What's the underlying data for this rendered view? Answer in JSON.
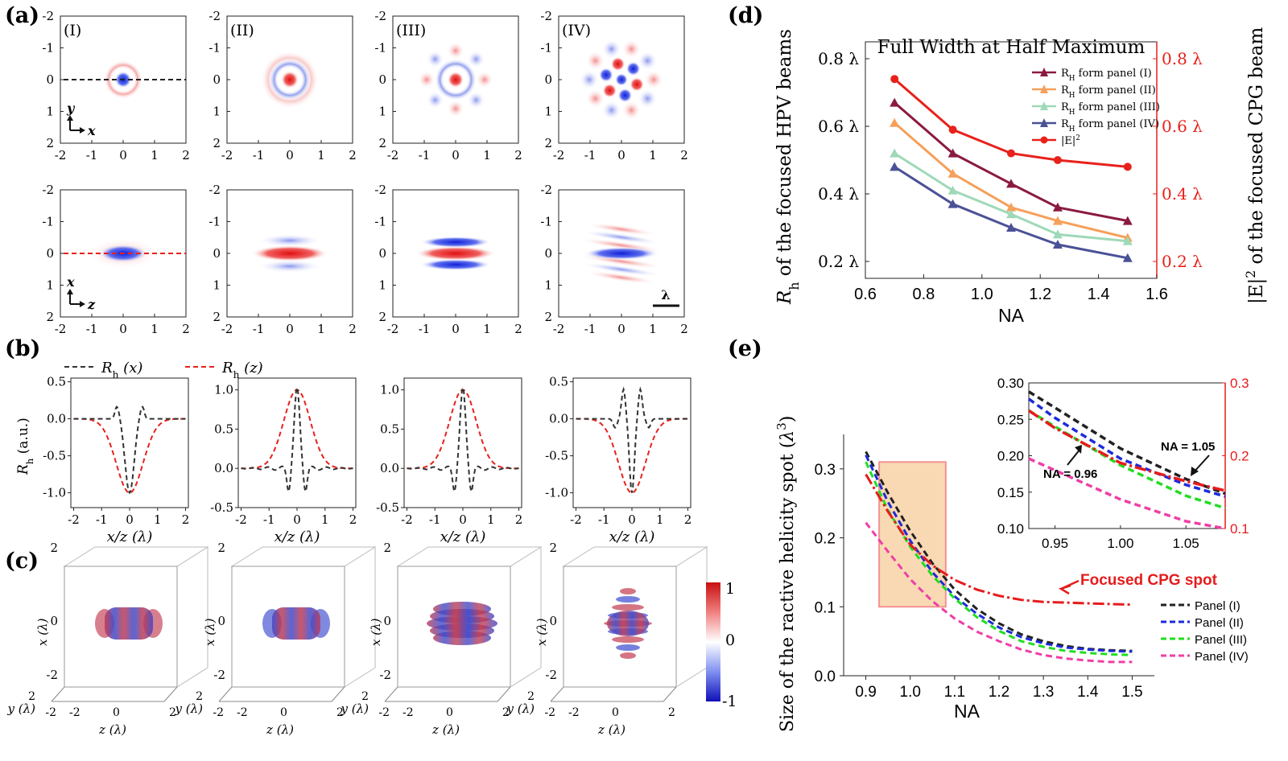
{
  "panel_labels": {
    "a": "(a)",
    "b": "(b)",
    "c": "(c)",
    "d": "(d)",
    "e": "(e)"
  },
  "colors": {
    "red": "#e8211b",
    "blue": "#1d2bd9",
    "black": "#222222",
    "maroon": "#8b1a3e",
    "orange": "#f5a05b",
    "mint": "#9fd9b8",
    "slate": "#4a5196",
    "green": "#22dd22",
    "magenta": "#ee3fa6",
    "cpg_red": "#e61c1c",
    "box_fill": "#f8d3a6",
    "box_edge": "#f08080"
  },
  "panel_a": {
    "roman": [
      "(I)",
      "(II)",
      "(III)",
      "(IV)"
    ],
    "tick_labels": [
      "-2",
      "-1",
      "0",
      "1",
      "2"
    ],
    "top_axes": {
      "v": "y",
      "h": "x"
    },
    "bottom_axes": {
      "v": "x",
      "h": "z"
    },
    "scale_bar_label": "λ"
  },
  "panel_b": {
    "legend": [
      {
        "name": "Rh (x)",
        "r": "R",
        "sub": "h",
        "arg": " (x)",
        "color": "#333333",
        "dash": "6,4"
      },
      {
        "name": "Rh (z)",
        "r": "R",
        "sub": "h",
        "arg": "  (z)",
        "color": "#e8211b",
        "dash": "6,4"
      }
    ],
    "ylabel_main": "R",
    "ylabel_sub": "h",
    "ylabel_tail": " (a.u.)",
    "xlabel": "x/z (λ)",
    "x_ticks": [
      "-2",
      "-1",
      "0",
      "1",
      "2"
    ]
  },
  "panel_c": {
    "axis_x": "x (λ)",
    "axis_y": "y (λ)",
    "axis_z": "z (λ)",
    "ticks": {
      "top": "2",
      "bottom": "-2",
      "zero": "0"
    },
    "colorbar": [
      "1",
      "0",
      "-1"
    ]
  },
  "chart_data": [
    {
      "type": "line",
      "title": "Full Width at Half Maximum",
      "xlabel": "NA",
      "ylabel_left": "Rh of the focused HPV beams",
      "ylabel_right": "|E|2 of the focused CPG beam",
      "xlim": [
        0.6,
        1.6
      ],
      "ylim": [
        0.15,
        0.85
      ],
      "x_ticks": [
        "0.6",
        "0.8",
        "1.0",
        "1.2",
        "1.4",
        "1.6"
      ],
      "y_ticks": [
        "0.2 λ",
        "0.4 λ",
        "0.6 λ",
        "0.8 λ"
      ],
      "x": [
        0.7,
        0.9,
        1.1,
        1.26,
        1.5
      ],
      "series": [
        {
          "name": "RH form panel (I)",
          "label_main": "R",
          "label_sub": "H",
          "label_tail": " form panel (I)",
          "marker": "triangle",
          "color": "#8b1a3e",
          "values": [
            0.67,
            0.52,
            0.43,
            0.36,
            0.32
          ]
        },
        {
          "name": "RH form panel (II)",
          "label_main": "R",
          "label_sub": "H",
          "label_tail": " form panel (II)",
          "marker": "triangle",
          "color": "#f5a05b",
          "values": [
            0.61,
            0.46,
            0.36,
            0.32,
            0.27
          ]
        },
        {
          "name": "RH form panel (III)",
          "label_main": "R",
          "label_sub": "H",
          "label_tail": " form panel (III)",
          "marker": "triangle",
          "color": "#9fd9b8",
          "values": [
            0.52,
            0.41,
            0.34,
            0.28,
            0.26
          ]
        },
        {
          "name": "RH form panel (IV)",
          "label_main": "R",
          "label_sub": "H",
          "label_tail": " form panel (IV)",
          "marker": "triangle",
          "color": "#4a5196",
          "values": [
            0.48,
            0.37,
            0.3,
            0.25,
            0.21
          ]
        },
        {
          "name": "|E|2",
          "label_main": "|E|",
          "label_sub": "",
          "label_sup": "2",
          "label_tail": "",
          "marker": "circle",
          "color": "#e8211b",
          "values": [
            0.74,
            0.59,
            0.52,
            0.5,
            0.48
          ]
        }
      ]
    },
    {
      "type": "line",
      "xlabel": "NA",
      "ylabel": "Size of the ractive helicity spot (λ3)",
      "xlim": [
        0.85,
        1.55
      ],
      "ylim": [
        0,
        0.35
      ],
      "x_ticks": [
        "0.9",
        "1.0",
        "1.1",
        "1.2",
        "1.3",
        "1.4",
        "1.5"
      ],
      "y_ticks": [
        "0.0",
        "0.1",
        "0.2",
        "0.3"
      ],
      "x": [
        0.9,
        0.95,
        1.0,
        1.05,
        1.1,
        1.15,
        1.2,
        1.25,
        1.3,
        1.35,
        1.4,
        1.45,
        1.5
      ],
      "highlight_box": {
        "x": [
          0.93,
          1.08
        ],
        "y": [
          0.1,
          0.31
        ]
      },
      "annotation": "Focused CPG spot",
      "series": [
        {
          "name": "Panel (I)",
          "color": "#222222",
          "dash": "8,5",
          "values": [
            0.325,
            0.265,
            0.21,
            0.163,
            0.125,
            0.097,
            0.076,
            0.06,
            0.05,
            0.043,
            0.039,
            0.037,
            0.036
          ]
        },
        {
          "name": "Panel (II)",
          "color": "#1d2bd9",
          "dash": "8,5",
          "values": [
            0.32,
            0.252,
            0.196,
            0.15,
            0.115,
            0.09,
            0.07,
            0.056,
            0.047,
            0.041,
            0.038,
            0.036,
            0.035
          ]
        },
        {
          "name": "Panel (III)",
          "color": "#22dd22",
          "dash": "8,5",
          "values": [
            0.31,
            0.24,
            0.187,
            0.145,
            0.112,
            0.085,
            0.065,
            0.05,
            0.042,
            0.036,
            0.033,
            0.031,
            0.03
          ]
        },
        {
          "name": "Panel (IV)",
          "color": "#ee3fa6",
          "dash": "8,5",
          "values": [
            0.222,
            0.18,
            0.14,
            0.108,
            0.083,
            0.064,
            0.05,
            0.038,
            0.03,
            0.025,
            0.022,
            0.02,
            0.02
          ]
        },
        {
          "name": "Focused CPG spot",
          "legend": false,
          "color": "#e61c1c",
          "dash": "14,4,3,4",
          "values": [
            0.292,
            0.238,
            0.19,
            0.16,
            0.139,
            0.125,
            0.116,
            0.11,
            0.107,
            0.106,
            0.105,
            0.104,
            0.103
          ]
        }
      ],
      "inset": {
        "xlim": [
          0.93,
          1.08
        ],
        "ylim": [
          0.1,
          0.3
        ],
        "x_ticks": [
          "0.95",
          "1.00",
          "1.05"
        ],
        "y_ticks": [
          "0.10",
          "0.15",
          "0.20",
          "0.25",
          "0.30"
        ],
        "y_ticks_right": [
          "0.1",
          "0.2",
          "0.3"
        ],
        "annotations": [
          "NA = 1.05",
          "NA = 0.96"
        ],
        "x": [
          0.93,
          0.95,
          1.0,
          1.05,
          1.08
        ],
        "series": [
          {
            "name": "Panel (I)",
            "color": "#222222",
            "values": [
              0.288,
              0.266,
              0.21,
              0.168,
              0.148
            ]
          },
          {
            "name": "Panel (II)",
            "color": "#1d2bd9",
            "values": [
              0.278,
              0.252,
              0.196,
              0.16,
              0.144
            ]
          },
          {
            "name": "Panel (III)",
            "color": "#22dd22",
            "values": [
              0.262,
              0.24,
              0.187,
              0.145,
              0.128
            ]
          },
          {
            "name": "Focused CPG spot",
            "color": "#e61c1c",
            "values": [
              0.262,
              0.238,
              0.19,
              0.165,
              0.152
            ]
          },
          {
            "name": "Panel (IV)",
            "color": "#ee3fa6",
            "values": [
              0.196,
              0.18,
              0.14,
              0.11,
              0.1
            ]
          }
        ]
      }
    }
  ]
}
